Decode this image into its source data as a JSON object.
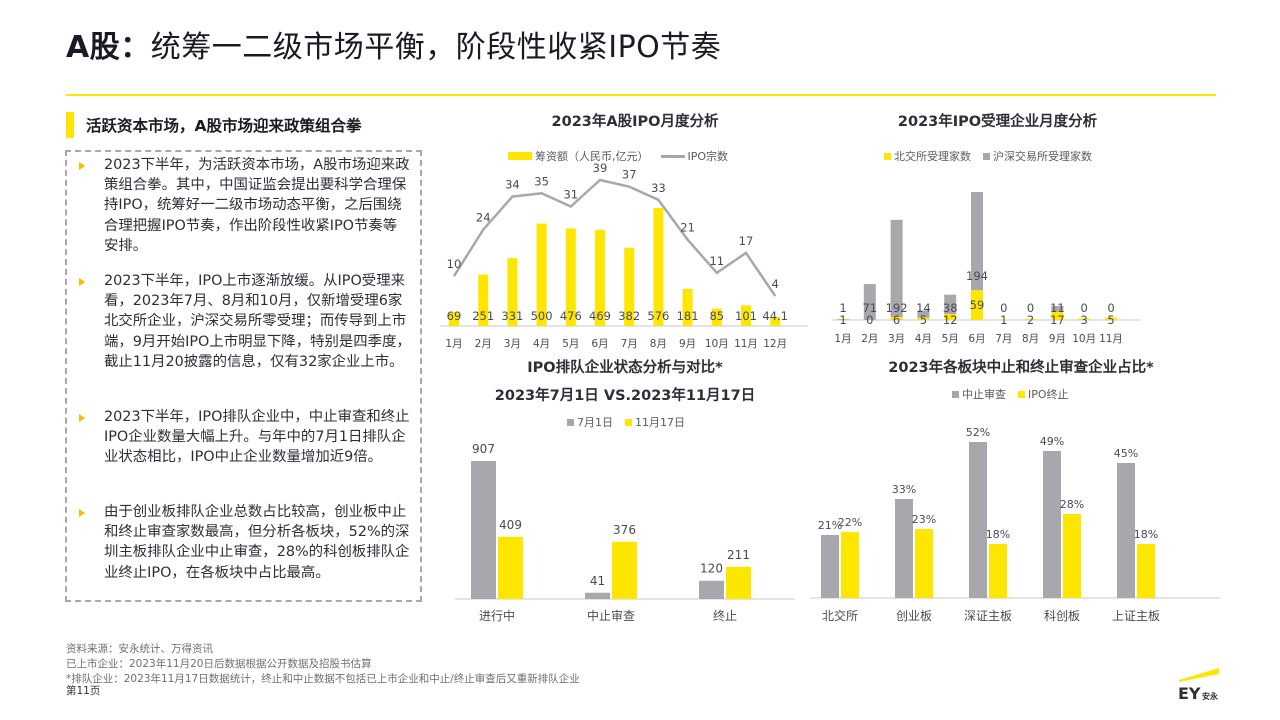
{
  "page": {
    "title_bold": "A股：",
    "title_rest": "统筹一二级市场平衡，阶段性收紧IPO节奏",
    "colors": {
      "yellow": "#ffe600",
      "gray": "#a7a7ad",
      "line": "#a7a7ad",
      "dark": "#2e2e38",
      "bullet": "#ffb800"
    }
  },
  "left_panel": {
    "heading": "活跃资本市场，A股市场迎来政策组合拳",
    "bullets": [
      "2023下半年，为活跃资本市场，A股市场迎来政策组合拳。其中，中国证监会提出要科学合理保持IPO，统筹好一二级市场动态平衡，之后围绕合理把握IPO节奏，作出阶段性收紧IPO节奏等安排。",
      "2023下半年，IPO上市逐渐放缓。从IPO受理来看，2023年7月、8月和10月，仅新增受理6家北交所企业，沪深交易所零受理；而传导到上市端，9月开始IPO上市明显下降，特别是四季度，截止11月20披露的信息，仅有32家企业上市。",
      "2023下半年，IPO排队企业中，中止审查和终止IPO企业数量大幅上升。与年中的7月1日排队企业状态相比，IPO中止企业数量增加近9倍。",
      "由于创业板排队企业总数占比较高，创业板中止和终止审查家数最高，但分析各板块，52%的深圳主板排队企业中止审查，28%的科创板排队企业终止IPO，在各板块中占比最高。"
    ]
  },
  "chart_data": [
    {
      "id": "monthly-ipo",
      "type": "bar",
      "title": "2023年A股IPO月度分析",
      "categories": [
        "1月",
        "2月",
        "3月",
        "4月",
        "5月",
        "6月",
        "7月",
        "8月",
        "9月",
        "10月",
        "11月",
        "12月"
      ],
      "series": [
        {
          "name": "筹资额（人民币,亿元）",
          "kind": "bar",
          "color": "#ffe600",
          "values": [
            69,
            251,
            331,
            500,
            476,
            469,
            382,
            576,
            181,
            85,
            101,
            44.1
          ]
        },
        {
          "name": "IPO宗数",
          "kind": "line",
          "color": "#a7a7ad",
          "values": [
            10,
            24,
            34,
            35,
            31,
            39,
            37,
            33,
            21,
            11,
            17,
            4
          ]
        }
      ]
    },
    {
      "id": "monthly-acceptance",
      "type": "bar",
      "title": "2023年IPO受理企业月度分析",
      "categories": [
        "1月",
        "2月",
        "3月",
        "4月",
        "5月",
        "6月",
        "7月",
        "8月",
        "9月",
        "10月",
        "11月"
      ],
      "series": [
        {
          "name": "北交所受理家数",
          "color": "#ffe600",
          "values": [
            1,
            0,
            6,
            5,
            12,
            59,
            1,
            2,
            17,
            3,
            5
          ]
        },
        {
          "name": "沪深交易所受理家数",
          "color": "#a7a7ad",
          "values": [
            1,
            71,
            192,
            14,
            38,
            194,
            0,
            0,
            11,
            0,
            0
          ]
        }
      ]
    },
    {
      "id": "queue-status",
      "type": "bar",
      "title": "IPO排队企业状态分析与对比*",
      "subtitle": "2023年7月1日 VS.2023年11月17日",
      "categories": [
        "进行中",
        "中止审查",
        "终止"
      ],
      "series": [
        {
          "name": "7月1日",
          "color": "#a7a7ad",
          "values": [
            907,
            41,
            120
          ]
        },
        {
          "name": "11月17日",
          "color": "#ffe600",
          "values": [
            409,
            376,
            211
          ]
        }
      ]
    },
    {
      "id": "board-ratio",
      "type": "bar",
      "title": "2023年各板块中止和终止审查企业占比*",
      "categories": [
        "北交所",
        "创业板",
        "深证主板",
        "科创板",
        "上证主板"
      ],
      "series": [
        {
          "name": "中止审查",
          "color": "#a7a7ad",
          "values": [
            21,
            33,
            52,
            49,
            45
          ]
        },
        {
          "name": "IPO终止",
          "color": "#ffe600",
          "values": [
            22,
            23,
            18,
            28,
            18
          ]
        }
      ]
    }
  ],
  "footer": {
    "lines": [
      "资料来源：安永统计、万得资讯",
      "已上市企业：2023年11月20日后数据根据公开数据及招股书估算",
      "*排队企业：2023年11月17日数据统计，终止和中止数据不包括已上市企业和中止/终止审查后又重新排队企业"
    ],
    "page_number": "第11页",
    "logo_text": "EY",
    "logo_sub": "安永"
  }
}
